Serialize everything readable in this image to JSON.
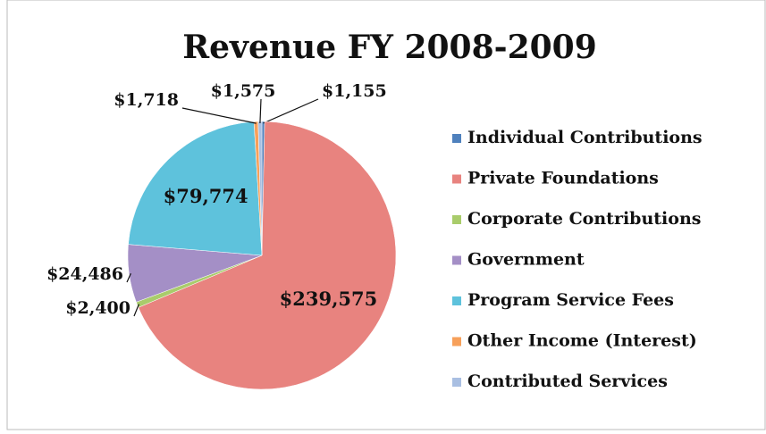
{
  "chart_data": {
    "type": "pie",
    "title": "Revenue FY 2008-2009",
    "categories": [
      "Individual Contributions",
      "Private Foundations",
      "Corporate Contributions",
      "Government",
      "Program Service Fees",
      "Other Income (Interest)",
      "Contributed Services"
    ],
    "values": [
      1155,
      239575,
      2400,
      24486,
      79774,
      1718,
      1575
    ],
    "value_labels": [
      "$1,155",
      "$239,575",
      "$2,400",
      "$24,486",
      "$79,774",
      "$1,718",
      "$1,575"
    ],
    "colors": [
      "#4f81bd",
      "#e8837f",
      "#a9cc6b",
      "#a48fc6",
      "#5ec2dc",
      "#f7a05a",
      "#a9bfe2"
    ],
    "legend": "right"
  }
}
